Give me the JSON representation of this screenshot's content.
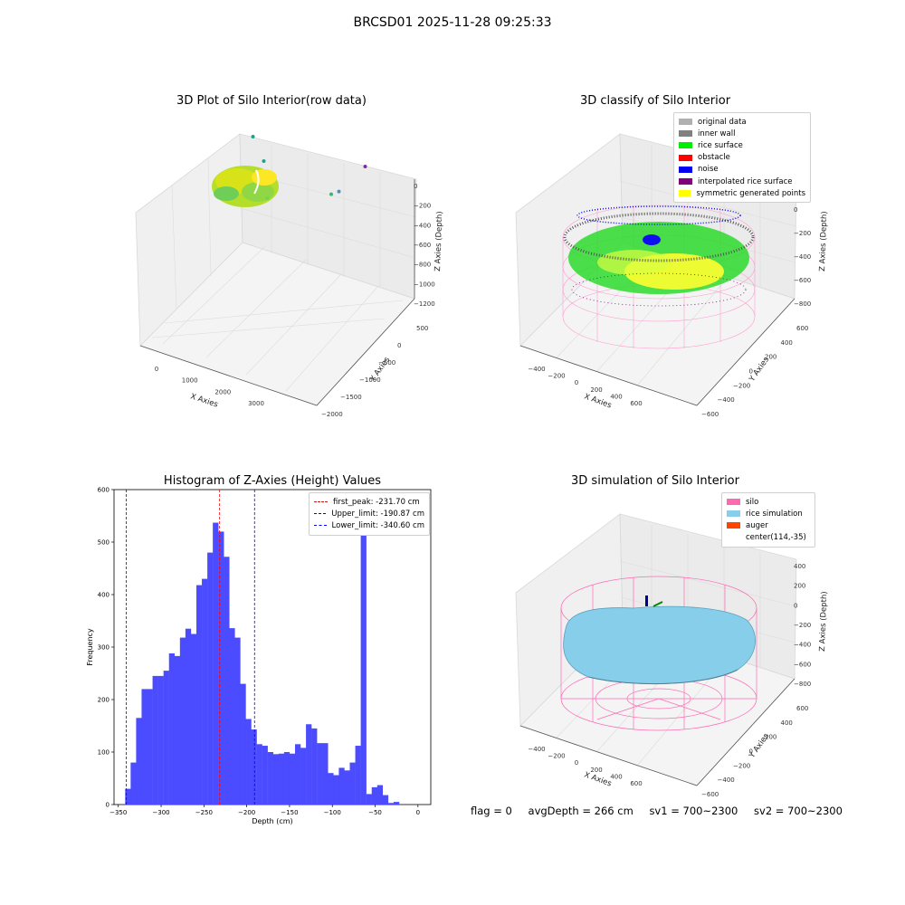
{
  "figure": {
    "title": "BRCSD01 2025-11-28 09:25:33",
    "status": {
      "flag": "flag = 0",
      "avg_depth": "avgDepth = 266 cm",
      "sv1": "sv1 = 700~2300",
      "sv2": "sv2 = 700~2300"
    }
  },
  "chart_data": [
    {
      "type": "scatter",
      "title": "3D Plot of Silo Interior(row data)",
      "xlabel": "X Axies",
      "ylabel": "Y Axies",
      "zlabel": "Z Axies (Depth)",
      "x_ticks": [
        "0",
        "1000",
        "2000",
        "3000"
      ],
      "y_ticks": [
        "500",
        "0",
        "−500",
        "−1000",
        "−1500",
        "−2000"
      ],
      "z_ticks": [
        "0",
        "−200",
        "−400",
        "−600",
        "−800",
        "−1000",
        "−1200"
      ],
      "colormap": [
        "#440154",
        "#21918c",
        "#5ec962",
        "#fde725"
      ],
      "outlier_points": [
        {
          "x": 1300,
          "y": 300,
          "z": -250,
          "color": "#7ad151"
        },
        {
          "x": 900,
          "y": 100,
          "z": -720,
          "color": "#2a9d8f"
        },
        {
          "x": 700,
          "y": 200,
          "z": -960,
          "color": "#1f9e89"
        },
        {
          "x": 2600,
          "y": -200,
          "z": -640,
          "color": "#35b779"
        },
        {
          "x": 2700,
          "y": -300,
          "z": -720,
          "color": "#4a90b8"
        },
        {
          "x": 3100,
          "y": -600,
          "z": -1180,
          "color": "#7b3294"
        }
      ]
    },
    {
      "type": "scatter",
      "title": "3D classify of Silo Interior",
      "xlabel": "X Axies",
      "ylabel": "Y Axies",
      "zlabel": "Z Axies (Depth)",
      "x_ticks": [
        "−400",
        "−200",
        "0",
        "200",
        "400",
        "600"
      ],
      "y_ticks": [
        "600",
        "400",
        "200",
        "0",
        "−200",
        "−400",
        "−600"
      ],
      "z_ticks": [
        "200",
        "0",
        "−200",
        "−400",
        "−600",
        "−800"
      ],
      "legend": [
        {
          "label": "original data",
          "color": "#b0b0b0"
        },
        {
          "label": "inner wall",
          "color": "#808080"
        },
        {
          "label": "rice surface",
          "color": "#00ee00"
        },
        {
          "label": "obstacle",
          "color": "#ff0000"
        },
        {
          "label": "noise",
          "color": "#0000ee"
        },
        {
          "label": "interpolated rice surface",
          "color": "#800080"
        },
        {
          "label": "symmetric generated points",
          "color": "#ffff00"
        }
      ]
    },
    {
      "type": "bar",
      "title": "Histogram of Z-Axies (Height) Values",
      "xlabel": "Depth (cm)",
      "ylabel": "Frequency",
      "xlim": [
        -355,
        15
      ],
      "ylim": [
        0,
        600
      ],
      "x_ticks": [
        -350,
        -300,
        -250,
        -200,
        -150,
        -100,
        -50,
        0
      ],
      "y_ticks": [
        0,
        100,
        200,
        300,
        400,
        500,
        600
      ],
      "bin_start": -342,
      "bin_width": 6.4,
      "bar_color": "#4b4bff",
      "values": [
        30,
        80,
        165,
        220,
        220,
        245,
        245,
        255,
        288,
        283,
        318,
        335,
        325,
        418,
        430,
        480,
        537,
        520,
        472,
        336,
        318,
        230,
        163,
        143,
        115,
        112,
        100,
        96,
        97,
        100,
        97,
        115,
        108,
        153,
        145,
        117,
        117,
        60,
        56,
        70,
        65,
        80,
        112,
        548,
        20,
        33,
        37,
        18,
        3,
        5
      ],
      "vlines": [
        {
          "label": "first_peak: -231.70 cm",
          "x": -231.7,
          "color": "#ff0000"
        },
        {
          "label": "Upper_limit: -190.87 cm",
          "x": -190.87,
          "color": "#0000ff"
        },
        {
          "label": "Lower_limit: -340.60 cm",
          "x": -340.6,
          "color": "#0000ff"
        }
      ]
    },
    {
      "type": "area",
      "title": "3D simulation of Silo Interior",
      "xlabel": "X Axies",
      "ylabel": "Y Axies",
      "zlabel": "Z Axies (Depth)",
      "x_ticks": [
        "−400",
        "−200",
        "0",
        "200",
        "400",
        "600"
      ],
      "y_ticks": [
        "600",
        "400",
        "200",
        "0",
        "−200",
        "−400",
        "−600"
      ],
      "z_ticks": [
        "400",
        "200",
        "0",
        "−200",
        "−400",
        "−600",
        "−800"
      ],
      "legend": [
        {
          "label": "silo",
          "color": "#ff69b4"
        },
        {
          "label": "rice simulation",
          "color": "#87ceeb"
        },
        {
          "label": "auger",
          "color": "#ff4500"
        },
        {
          "label": "center(114,-35)",
          "color": ""
        }
      ]
    }
  ]
}
